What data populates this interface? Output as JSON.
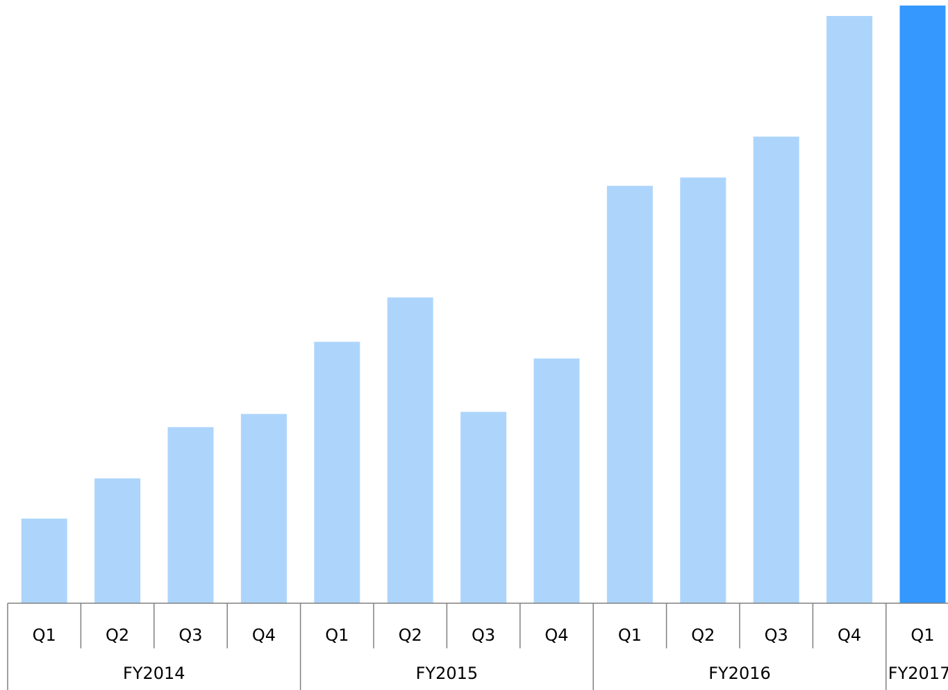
{
  "chart_data": {
    "type": "bar",
    "categories": [
      "Q1",
      "Q2",
      "Q3",
      "Q4",
      "Q1",
      "Q2",
      "Q3",
      "Q4",
      "Q1",
      "Q2",
      "Q3",
      "Q4",
      "Q1"
    ],
    "groups": [
      {
        "label": "FY2014",
        "count": 4
      },
      {
        "label": "FY2015",
        "count": 4
      },
      {
        "label": "FY2016",
        "count": 4
      },
      {
        "label": "FY2017",
        "count": 1
      }
    ],
    "values": [
      122,
      180,
      254,
      273,
      377,
      441,
      276,
      353,
      602,
      614,
      673,
      847,
      862
    ],
    "highlight_index": 12,
    "ylim": [
      0,
      862
    ],
    "title": "",
    "xlabel": "",
    "ylabel": "",
    "grid": false,
    "colors": {
      "bar": "#add5fc",
      "highlight": "#3598fe",
      "axis": "#808080",
      "text": "#000000"
    }
  }
}
